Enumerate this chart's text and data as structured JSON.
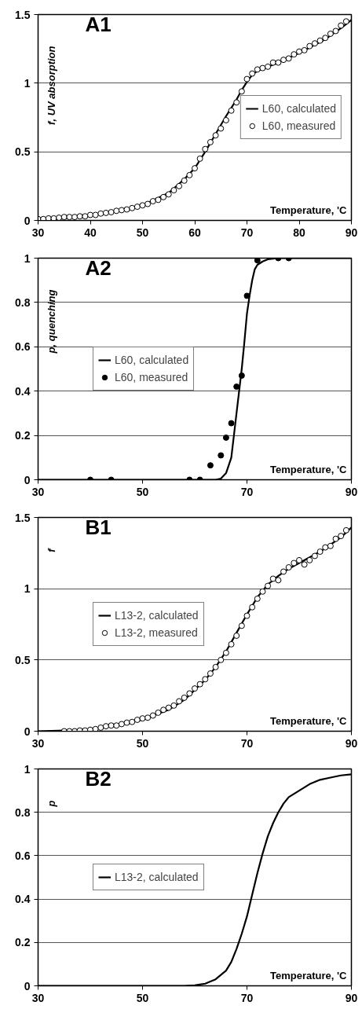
{
  "chart_data": [
    {
      "type": "line",
      "title": "A1",
      "xlabel": "Temperature, 'C",
      "ylabel": "f, UV absorption",
      "xlim": [
        30,
        90
      ],
      "ylim": [
        0,
        1.5
      ],
      "xticks": [
        30,
        40,
        50,
        60,
        70,
        80,
        90
      ],
      "yticks": [
        0,
        0.5,
        1,
        1.5
      ],
      "grid": "y",
      "legend": "right",
      "series": [
        {
          "name": "L60, measured",
          "type": "scatter",
          "marker": "circle",
          "color": "#ffffff",
          "x": [
            30,
            31,
            32,
            33,
            34,
            35,
            36,
            37,
            38,
            39,
            40,
            41,
            42,
            43,
            44,
            45,
            46,
            47,
            48,
            49,
            50,
            51,
            52,
            53,
            54,
            55,
            56,
            57,
            58,
            59,
            60,
            61,
            62,
            63,
            64,
            65,
            66,
            67,
            68,
            69,
            70,
            71,
            72,
            73,
            74,
            75,
            76,
            77,
            78,
            79,
            80,
            81,
            82,
            83,
            84,
            85,
            86,
            87,
            88,
            89
          ],
          "values": [
            0.01,
            0.01,
            0.015,
            0.015,
            0.02,
            0.025,
            0.025,
            0.025,
            0.03,
            0.03,
            0.04,
            0.04,
            0.05,
            0.055,
            0.06,
            0.07,
            0.075,
            0.08,
            0.09,
            0.1,
            0.11,
            0.12,
            0.14,
            0.15,
            0.17,
            0.19,
            0.22,
            0.25,
            0.29,
            0.33,
            0.38,
            0.45,
            0.52,
            0.57,
            0.62,
            0.67,
            0.73,
            0.8,
            0.86,
            0.94,
            1.03,
            1.07,
            1.1,
            1.11,
            1.12,
            1.15,
            1.15,
            1.17,
            1.18,
            1.21,
            1.23,
            1.24,
            1.27,
            1.29,
            1.31,
            1.33,
            1.36,
            1.38,
            1.42,
            1.45
          ]
        },
        {
          "name": "L60, calculated",
          "type": "line",
          "color": "#000000",
          "x": [
            30,
            35,
            40,
            45,
            50,
            55,
            58,
            60,
            62,
            64,
            66,
            68,
            69,
            70,
            71,
            72,
            74,
            76,
            80,
            85,
            88,
            90
          ],
          "values": [
            0,
            0.015,
            0.035,
            0.065,
            0.11,
            0.2,
            0.3,
            0.38,
            0.5,
            0.63,
            0.76,
            0.88,
            0.95,
            1.01,
            1.06,
            1.09,
            1.12,
            1.15,
            1.22,
            1.32,
            1.4,
            1.46
          ]
        }
      ]
    },
    {
      "type": "line",
      "title": "A2",
      "xlabel": "Temperature, 'C",
      "ylabel": "p, quenching",
      "xlim": [
        30,
        90
      ],
      "ylim": [
        0,
        1
      ],
      "xticks": [
        30,
        50,
        70,
        90
      ],
      "yticks": [
        0,
        0.2,
        0.4,
        0.6,
        0.8,
        1
      ],
      "grid": "y",
      "legend": "left",
      "series": [
        {
          "name": "L60, measured",
          "type": "scatter",
          "marker": "circle",
          "color": "#000000",
          "x": [
            40,
            44,
            59,
            61,
            63,
            65,
            66,
            67,
            68,
            69,
            70,
            72,
            76,
            78
          ],
          "values": [
            0,
            0,
            0,
            0,
            0.065,
            0.11,
            0.19,
            0.255,
            0.42,
            0.47,
            0.83,
            0.99,
            1,
            1
          ]
        },
        {
          "name": "L60, calculated",
          "type": "line",
          "color": "#000000",
          "x": [
            30,
            64,
            65,
            66,
            67,
            67.5,
            68,
            68.5,
            69,
            69.5,
            70,
            70.5,
            71,
            71.5,
            72,
            73,
            74,
            76,
            90
          ],
          "values": [
            0,
            0,
            0.005,
            0.03,
            0.1,
            0.2,
            0.3,
            0.4,
            0.5,
            0.62,
            0.75,
            0.83,
            0.9,
            0.95,
            0.97,
            0.985,
            0.995,
            1,
            1
          ]
        }
      ]
    },
    {
      "type": "line",
      "title": "B1",
      "xlabel": "Temperature, 'C",
      "ylabel": "f",
      "xlim": [
        30,
        90
      ],
      "ylim": [
        0,
        1.5
      ],
      "xticks": [
        30,
        50,
        70,
        90
      ],
      "yticks": [
        0,
        0.5,
        1,
        1.5
      ],
      "grid": "y",
      "legend": "left",
      "series": [
        {
          "name": "L13-2, measured",
          "type": "scatter",
          "marker": "circle",
          "color": "#ffffff",
          "x": [
            35,
            36,
            37,
            38,
            39,
            40,
            41,
            42,
            43,
            44,
            45,
            46,
            47,
            48,
            49,
            50,
            51,
            52,
            53,
            54,
            55,
            56,
            57,
            58,
            59,
            60,
            61,
            62,
            63,
            64,
            65,
            66,
            67,
            68,
            69,
            70,
            71,
            72,
            73,
            74,
            75,
            76,
            77,
            78,
            79,
            80,
            81,
            82,
            83,
            84,
            85,
            86,
            87,
            88,
            89
          ],
          "values": [
            0,
            0,
            0,
            0.005,
            0.005,
            0.01,
            0.015,
            0.025,
            0.035,
            0.04,
            0.04,
            0.05,
            0.06,
            0.065,
            0.08,
            0.09,
            0.095,
            0.11,
            0.13,
            0.15,
            0.165,
            0.18,
            0.21,
            0.235,
            0.265,
            0.3,
            0.33,
            0.365,
            0.405,
            0.45,
            0.5,
            0.55,
            0.61,
            0.67,
            0.74,
            0.81,
            0.87,
            0.93,
            0.98,
            1.02,
            1.07,
            1.06,
            1.12,
            1.15,
            1.18,
            1.2,
            1.17,
            1.2,
            1.23,
            1.26,
            1.29,
            1.3,
            1.35,
            1.37,
            1.41
          ]
        },
        {
          "name": "L13-2, calculated",
          "type": "line",
          "color": "#000000",
          "x": [
            30,
            35,
            40,
            45,
            50,
            55,
            58,
            60,
            62,
            64,
            66,
            68,
            70,
            72,
            74,
            76,
            78,
            80,
            84,
            88,
            90
          ],
          "values": [
            0,
            0.005,
            0.01,
            0.04,
            0.08,
            0.15,
            0.22,
            0.29,
            0.36,
            0.45,
            0.56,
            0.69,
            0.82,
            0.94,
            1.03,
            1.09,
            1.14,
            1.18,
            1.26,
            1.36,
            1.43
          ]
        }
      ]
    },
    {
      "type": "line",
      "title": "B2",
      "xlabel": "Temperature, 'C",
      "ylabel": "p",
      "xlim": [
        30,
        90
      ],
      "ylim": [
        0,
        1
      ],
      "xticks": [
        30,
        50,
        70,
        90
      ],
      "yticks": [
        0,
        0.2,
        0.4,
        0.6,
        0.8,
        1
      ],
      "grid": "y",
      "legend": "left",
      "series": [
        {
          "name": "L13-2, calculated",
          "type": "line",
          "color": "#000000",
          "x": [
            30,
            58,
            60,
            62,
            64,
            66,
            67,
            68,
            69,
            70,
            71,
            72,
            73,
            74,
            75,
            76,
            77,
            78,
            80,
            82,
            84,
            86,
            88,
            90
          ],
          "values": [
            0,
            0,
            0.002,
            0.01,
            0.03,
            0.07,
            0.11,
            0.17,
            0.24,
            0.32,
            0.42,
            0.52,
            0.61,
            0.69,
            0.75,
            0.8,
            0.84,
            0.87,
            0.9,
            0.93,
            0.95,
            0.96,
            0.97,
            0.975
          ]
        }
      ]
    }
  ]
}
